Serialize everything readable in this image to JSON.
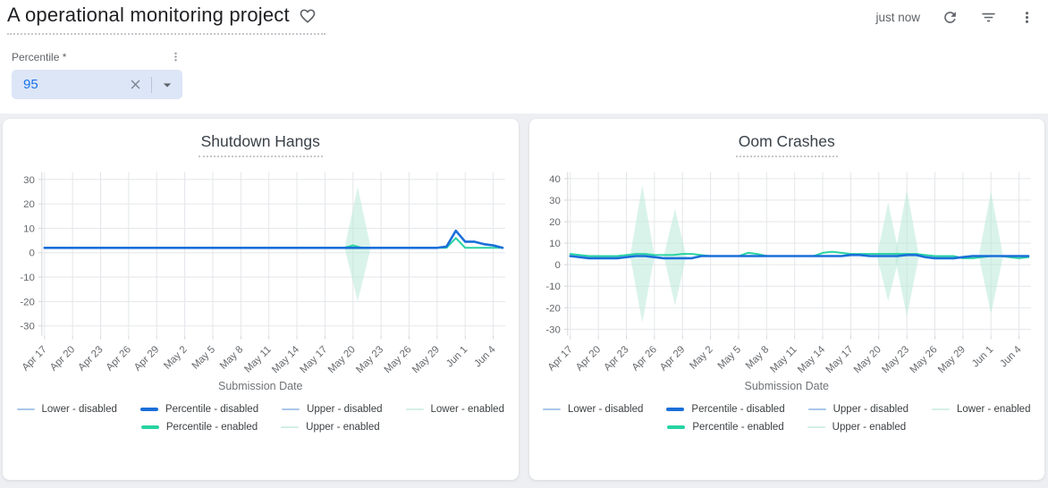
{
  "header": {
    "title": "A operational monitoring project",
    "sync_status": "just now",
    "icons": [
      "favorite-heart-icon",
      "refresh-icon",
      "filter-icon",
      "kebab-menu-icon"
    ]
  },
  "filter": {
    "label": "Percentile *",
    "value": "95",
    "icons": [
      "kebab-menu-icon",
      "clear-x-icon",
      "dropdown-caret-icon"
    ]
  },
  "colors": {
    "accent_blue": "#1a6fd9",
    "accent_green": "#27d3a2",
    "light_blue": "#a9c7e9",
    "light_mint": "#d3efe4",
    "band_fill": "#b9e9d8",
    "grid": "#e4e6e9",
    "axis_line": "#d3d6da",
    "axis_text": "#66696d"
  },
  "legend": {
    "rows": [
      [
        {
          "label": "Lower  - disabled",
          "color": "light_blue",
          "bold": false
        },
        {
          "label": "Percentile  - disabled",
          "color": "accent_blue",
          "bold": true
        },
        {
          "label": "Upper  - disabled",
          "color": "light_blue",
          "bold": false
        },
        {
          "label": "Lower  - enabled",
          "color": "light_mint",
          "bold": false
        }
      ],
      [
        {
          "label": "Percentile  - enabled",
          "color": "accent_green",
          "bold": true
        },
        {
          "label": "Upper  - enabled",
          "color": "light_mint",
          "bold": false
        }
      ]
    ]
  },
  "chart_data": [
    {
      "type": "line",
      "title": "Shutdown Hangs",
      "xlabel": "Submission Date",
      "categories": [
        "Apr 17",
        "Apr 20",
        "Apr 23",
        "Apr 26",
        "Apr 29",
        "May 2",
        "May 5",
        "May 8",
        "May 11",
        "May 14",
        "May 17",
        "May 20",
        "May 23",
        "May 26",
        "May 29",
        "Jun 1",
        "Jun 4"
      ],
      "days_per_tick": 3,
      "total_days": 49,
      "ylim": [
        -34,
        33
      ],
      "yticks": [
        30,
        20,
        10,
        0,
        -10,
        -20,
        -30
      ],
      "grid": true,
      "legend_position": "bottom",
      "series": [
        {
          "name": "Percentile - enabled",
          "color": "accent_green",
          "width": 2,
          "values": [
            2,
            2,
            2,
            2,
            2,
            2,
            2,
            2,
            2,
            2,
            2,
            2,
            2,
            2,
            2,
            2,
            2,
            2,
            2,
            2,
            2,
            2,
            2,
            2,
            2,
            2,
            2,
            2,
            2,
            2,
            2,
            2,
            2,
            3,
            2,
            2,
            2,
            2,
            2,
            2,
            2,
            2,
            2,
            2,
            6,
            2,
            2,
            2,
            2,
            2
          ]
        },
        {
          "name": "Percentile - disabled",
          "color": "accent_blue",
          "width": 2.6,
          "values": [
            2,
            2,
            2,
            2,
            2,
            2,
            2,
            2,
            2,
            2,
            2,
            2,
            2,
            2,
            2,
            2,
            2,
            2,
            2,
            2,
            2,
            2,
            2,
            2,
            2,
            2,
            2,
            2,
            2,
            2,
            2,
            2,
            2,
            2,
            2,
            2,
            2,
            2,
            2,
            2,
            2,
            2,
            2,
            2.5,
            9,
            4.5,
            4.5,
            3.5,
            3,
            2
          ]
        }
      ],
      "bands": [
        {
          "name": "enabled upper/lower envelope",
          "center_day": 33.5,
          "top": 27,
          "bottom": -20,
          "base": 2,
          "half_width_days": 1.4
        }
      ]
    },
    {
      "type": "line",
      "title": "Oom Crashes",
      "xlabel": "Submission Date",
      "categories": [
        "Apr 17",
        "Apr 20",
        "Apr 23",
        "Apr 26",
        "Apr 29",
        "May 2",
        "May 5",
        "May 8",
        "May 11",
        "May 14",
        "May 17",
        "May 20",
        "May 23",
        "May 26",
        "May 29",
        "Jun 1",
        "Jun 4"
      ],
      "days_per_tick": 3,
      "total_days": 49,
      "ylim": [
        -33,
        43
      ],
      "yticks": [
        40,
        30,
        20,
        10,
        0,
        -10,
        -20,
        -30
      ],
      "grid": true,
      "legend_position": "bottom",
      "series": [
        {
          "name": "Percentile - enabled",
          "color": "accent_green",
          "width": 2,
          "values": [
            5,
            4.5,
            4,
            4,
            4,
            4,
            4.5,
            5,
            5,
            4.5,
            4.5,
            4.5,
            5,
            5,
            4.5,
            4,
            4,
            4,
            4,
            5.5,
            5,
            4,
            4,
            4,
            4,
            4,
            4,
            5.5,
            6,
            5.5,
            5,
            5,
            5,
            5,
            5,
            5,
            5,
            5,
            4.5,
            4,
            4,
            4,
            3,
            3,
            3.5,
            4,
            4,
            3.5,
            3,
            3.5
          ]
        },
        {
          "name": "Percentile - disabled",
          "color": "accent_blue",
          "width": 2.6,
          "values": [
            4,
            3.5,
            3,
            3,
            3,
            3,
            3.5,
            4,
            4,
            3.5,
            3,
            3,
            3,
            3,
            4,
            4,
            4,
            4,
            4,
            4,
            4,
            4,
            4,
            4,
            4,
            4,
            4,
            4,
            4,
            4,
            4.5,
            4.5,
            4,
            4,
            4,
            4,
            4.5,
            4.5,
            3.5,
            3,
            3,
            3,
            3.5,
            4,
            4,
            4,
            4,
            4,
            4,
            4
          ]
        }
      ],
      "bands": [
        {
          "name": "enabled envelope spike Apr 25",
          "center_day": 7.7,
          "top": 37,
          "bottom": -27,
          "base": 4,
          "half_width_days": 1.3
        },
        {
          "name": "enabled envelope spike Apr 28",
          "center_day": 11.2,
          "top": 26,
          "bottom": -19,
          "base": 4,
          "half_width_days": 1.2
        },
        {
          "name": "enabled envelope spike May 21",
          "center_day": 34.0,
          "top": 29,
          "bottom": -17,
          "base": 4,
          "half_width_days": 1.2
        },
        {
          "name": "enabled envelope spike May 23",
          "center_day": 36.0,
          "top": 35,
          "bottom": -24,
          "base": 4,
          "half_width_days": 1.3
        },
        {
          "name": "enabled envelope spike Jun 1",
          "center_day": 45.0,
          "top": 34,
          "bottom": -23,
          "base": 4,
          "half_width_days": 1.3
        }
      ]
    }
  ]
}
